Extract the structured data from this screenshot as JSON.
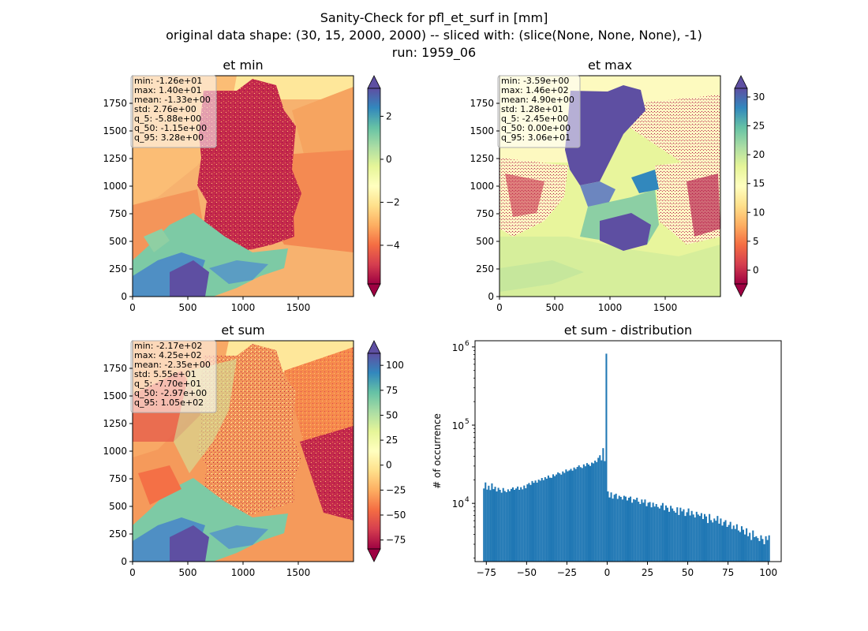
{
  "figure": {
    "title_lines": [
      "Sanity-Check for pfl_et_surf in [mm]",
      "original data shape: (30, 15, 2000, 2000) -- sliced with: (slice(None, None, None), -1)",
      "run: 1959_06"
    ]
  },
  "chart_data": [
    {
      "type": "heatmap",
      "title": "et min",
      "colormap": "Spectral",
      "x_ticks": [
        "0",
        "500",
        "1000",
        "1500"
      ],
      "y_ticks": [
        "0",
        "250",
        "500",
        "750",
        "1000",
        "1250",
        "1500",
        "1750"
      ],
      "xlim": [
        0,
        2000
      ],
      "ylim": [
        0,
        2000
      ],
      "colorbar": {
        "min": -5.8,
        "max": 3.3,
        "ticks": [
          -4,
          -2,
          0,
          2
        ],
        "tick_labels": [
          "−4",
          "−2",
          "0",
          "2"
        ],
        "extend": "both"
      },
      "stats": [
        "min: -1.26e+01",
        "max: 1.40e+01",
        "mean: -1.33e+00",
        "std: 2.76e+00",
        "q_5: -5.88e+00",
        "q_50: -1.15e+00",
        "q_95: 3.28e+00"
      ]
    },
    {
      "type": "heatmap",
      "title": "et max",
      "colormap": "Spectral",
      "x_ticks": [
        "0",
        "500",
        "1000",
        "1500"
      ],
      "y_ticks": [
        "0",
        "250",
        "500",
        "750",
        "1000",
        "1250",
        "1500",
        "1750"
      ],
      "xlim": [
        0,
        2000
      ],
      "ylim": [
        0,
        2000
      ],
      "colorbar": {
        "min": -2.4,
        "max": 31.5,
        "ticks": [
          0,
          5,
          10,
          15,
          20,
          25,
          30
        ],
        "tick_labels": [
          "0",
          "5",
          "10",
          "15",
          "20",
          "25",
          "30"
        ],
        "extend": "both"
      },
      "stats": [
        "min: -3.59e+00",
        "max: 1.46e+02",
        "mean: 4.90e+00",
        "std: 1.28e+01",
        "q_5: -2.45e+00",
        "q_50: 0.00e+00",
        "q_95: 3.06e+01"
      ]
    },
    {
      "type": "heatmap",
      "title": "et sum",
      "colormap": "Spectral",
      "x_ticks": [
        "0",
        "500",
        "1000",
        "1500"
      ],
      "y_ticks": [
        "0",
        "250",
        "500",
        "750",
        "1000",
        "1250",
        "1500",
        "1750"
      ],
      "xlim": [
        0,
        2000
      ],
      "ylim": [
        0,
        2000
      ],
      "colorbar": {
        "min": -84,
        "max": 112,
        "ticks": [
          -75,
          -50,
          -25,
          0,
          25,
          50,
          75,
          100
        ],
        "tick_labels": [
          "−75",
          "−50",
          "−25",
          "0",
          "25",
          "50",
          "75",
          "100"
        ],
        "extend": "both"
      },
      "stats": [
        "min: -2.17e+02",
        "max: 4.25e+02",
        "mean: -2.35e+00",
        "std: 5.55e+01",
        "q_5: -7.70e+01",
        "q_50: -2.97e+00",
        "q_95: 1.05e+02"
      ]
    },
    {
      "type": "bar",
      "title": "et sum - distribution",
      "ylabel": "# of occurrence",
      "xlabel": "",
      "yscale": "log",
      "xlim": [
        -82,
        108
      ],
      "ylim": [
        1800,
        1200000
      ],
      "x_ticks": [
        -75,
        -50,
        -25,
        0,
        25,
        50,
        75,
        100
      ],
      "x_tick_labels": [
        "−75",
        "−50",
        "−25",
        "0",
        "25",
        "50",
        "75",
        "100"
      ],
      "y_ticks": [
        10000,
        100000,
        1000000
      ],
      "y_tick_labels": [
        "10",
        "10",
        "10"
      ],
      "y_tick_exponents": [
        "4",
        "5",
        "6"
      ],
      "bar_color": "#1f77b4",
      "bin_start": -77,
      "bin_width": 1.0,
      "values": [
        15500,
        18500,
        15000,
        16800,
        14800,
        18000,
        15200,
        16300,
        14200,
        15800,
        14900,
        13700,
        15700,
        14400,
        13900,
        15100,
        14300,
        15300,
        16000,
        14900,
        15500,
        16400,
        14900,
        16100,
        15100,
        16900,
        15600,
        17500,
        18200,
        17200,
        19300,
        18300,
        19600,
        18400,
        20100,
        19500,
        21100,
        19800,
        21600,
        20700,
        22700,
        21300,
        21200,
        23500,
        22300,
        23400,
        24900,
        24200,
        23300,
        25600,
        24500,
        27100,
        25700,
        26400,
        27600,
        26200,
        28700,
        27500,
        29200,
        30600,
        29000,
        28300,
        31500,
        29800,
        32700,
        31400,
        30100,
        33200,
        32500,
        35200,
        33700,
        38200,
        41200,
        35500,
        50800,
        34700,
        820000,
        14200,
        11900,
        13800,
        11500,
        12900,
        13300,
        11400,
        12500,
        12100,
        11200,
        12500,
        12200,
        10900,
        11800,
        12200,
        10200,
        11300,
        11100,
        11800,
        10500,
        9800,
        11200,
        10200,
        11200,
        9200,
        10200,
        10400,
        8900,
        10200,
        9100,
        9800,
        9000,
        8600,
        9400,
        10100,
        8200,
        9400,
        8800,
        7800,
        9300,
        8600,
        8000,
        7600,
        8900,
        7100,
        8800,
        7900,
        8400,
        6900,
        7700,
        8600,
        7000,
        8000,
        7200,
        6600,
        7800,
        7200,
        6900,
        7500,
        6300,
        7300,
        6800,
        5600,
        7300,
        6100,
        5700,
        6400,
        6000,
        6900,
        5500,
        6400,
        5200,
        5800,
        6100,
        5000,
        5300,
        5800,
        4700,
        5200,
        4700,
        5400,
        4500,
        4300,
        5100,
        4600,
        4000,
        4800,
        3800,
        4200,
        3400,
        4500,
        3700,
        3800,
        3600,
        3300,
        3900,
        3500,
        3000,
        3800,
        3400,
        3900
      ]
    }
  ]
}
